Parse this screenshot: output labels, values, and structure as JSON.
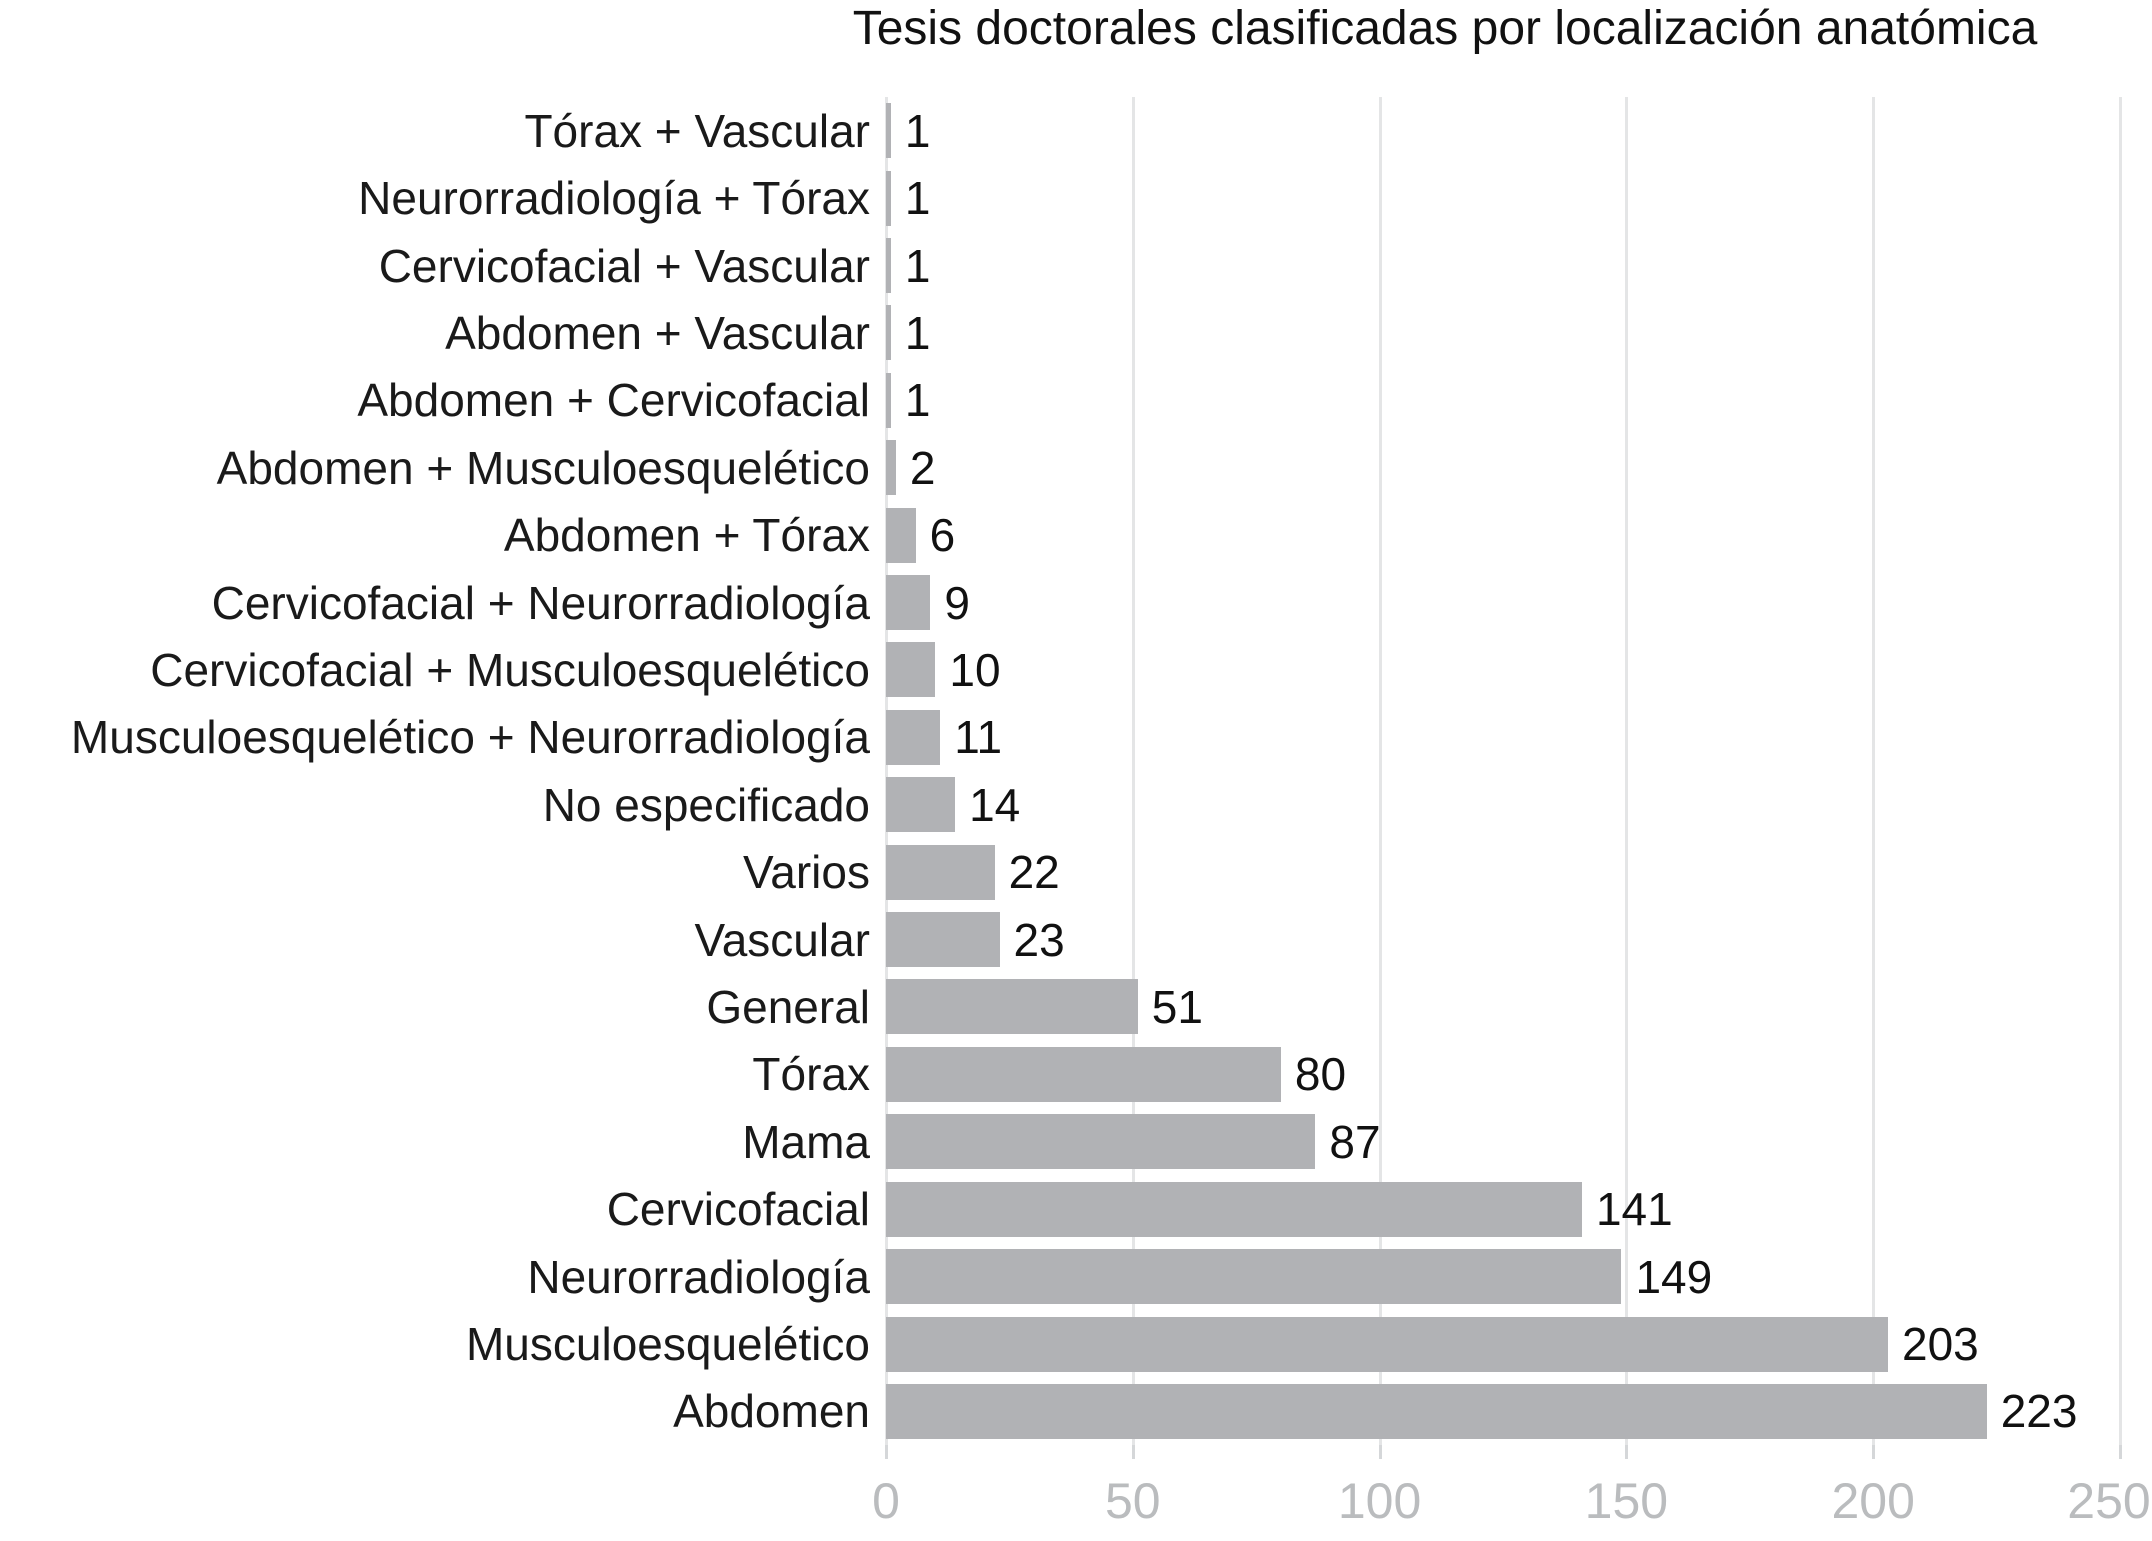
{
  "chart_data": {
    "type": "bar",
    "orientation": "horizontal",
    "title": "Tesis doctorales clasificadas por localización anatómica",
    "categories": [
      "Tórax + Vascular",
      "Neurorradiología + Tórax",
      "Cervicofacial + Vascular",
      "Abdomen + Vascular",
      "Abdomen + Cervicofacial",
      "Abdomen + Musculoesquelético",
      "Abdomen + Tórax",
      "Cervicofacial + Neurorradiología",
      "Cervicofacial + Musculoesquelético",
      "Musculoesquelético + Neurorradiología",
      "No especificado",
      "Varios",
      "Vascular",
      "General",
      "Tórax",
      "Mama",
      "Cervicofacial",
      "Neurorradiología",
      "Musculoesquelético",
      "Abdomen"
    ],
    "values": [
      1,
      1,
      1,
      1,
      1,
      2,
      6,
      9,
      10,
      11,
      14,
      22,
      23,
      51,
      80,
      87,
      141,
      149,
      203,
      223
    ],
    "value_labels": [
      "1",
      "1",
      "1",
      "1",
      "1",
      "2",
      "6",
      "9",
      "10",
      "11",
      "14",
      "22",
      "23",
      "51",
      "80",
      "87",
      "141",
      "149",
      "203",
      "223"
    ],
    "xlabel": "",
    "ylabel": "",
    "xlim": [
      0,
      250
    ],
    "x_ticks": [
      0,
      50,
      100,
      150,
      200,
      250
    ],
    "x_tick_labels": [
      "0",
      "50",
      "100",
      "150",
      "200",
      "250"
    ],
    "grid": "vertical",
    "legend": "none",
    "colors": {
      "bar": "#b1b2b5",
      "gridline": "#e4e5e6",
      "tick_mark": "#d5d7d9",
      "tick_label": "#babcbe",
      "category_label": "#1a1a1a",
      "value_label": "#111111",
      "title": "#111111",
      "background": "#ffffff"
    }
  }
}
